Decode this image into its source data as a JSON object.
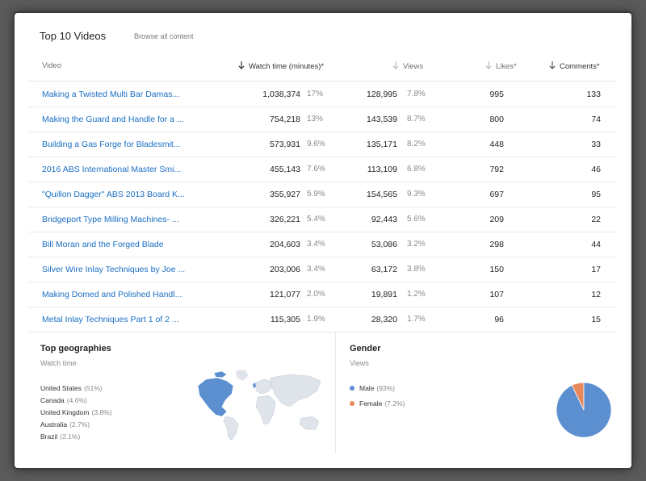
{
  "header": {
    "title": "Top 10 Videos",
    "browse_label": "Browse all content"
  },
  "columns": {
    "video": "Video",
    "watch_time": "Watch time (minutes)*",
    "views": "Views",
    "likes": "Likes*",
    "comments": "Comments*"
  },
  "rows": [
    {
      "title": "Making a Twisted Multi Bar Damas...",
      "watch": "1,038,374",
      "watch_pct": "17%",
      "views": "128,995",
      "views_pct": "7.8%",
      "likes": "995",
      "comments": "133"
    },
    {
      "title": "Making the Guard and Handle for a ...",
      "watch": "754,218",
      "watch_pct": "13%",
      "views": "143,539",
      "views_pct": "8.7%",
      "likes": "800",
      "comments": "74"
    },
    {
      "title": "Building a Gas Forge for Bladesmit...",
      "watch": "573,931",
      "watch_pct": "9.6%",
      "views": "135,171",
      "views_pct": "8.2%",
      "likes": "448",
      "comments": "33"
    },
    {
      "title": "2016 ABS International Master Smi...",
      "watch": "455,143",
      "watch_pct": "7.6%",
      "views": "113,109",
      "views_pct": "6.8%",
      "likes": "792",
      "comments": "46"
    },
    {
      "title": "\"Quillon Dagger\" ABS 2013 Board K...",
      "watch": "355,927",
      "watch_pct": "5.9%",
      "views": "154,565",
      "views_pct": "9.3%",
      "likes": "697",
      "comments": "95"
    },
    {
      "title": "Bridgeport Type Milling Machines- ...",
      "watch": "326,221",
      "watch_pct": "5.4%",
      "views": "92,443",
      "views_pct": "5.6%",
      "likes": "209",
      "comments": "22"
    },
    {
      "title": "Bill Moran and the Forged Blade",
      "watch": "204,603",
      "watch_pct": "3.4%",
      "views": "53,086",
      "views_pct": "3.2%",
      "likes": "298",
      "comments": "44"
    },
    {
      "title": "Silver Wire Inlay Techniques by Joe ...",
      "watch": "203,006",
      "watch_pct": "3.4%",
      "views": "63,172",
      "views_pct": "3.8%",
      "likes": "150",
      "comments": "17"
    },
    {
      "title": "Making Domed and Polished Handl...",
      "watch": "121,077",
      "watch_pct": "2.0%",
      "views": "19,891",
      "views_pct": "1.2%",
      "likes": "107",
      "comments": "12"
    },
    {
      "title": "Metal Inlay Techniques Part 1 of 2 ...",
      "watch": "115,305",
      "watch_pct": "1.9%",
      "views": "28,320",
      "views_pct": "1.7%",
      "likes": "96",
      "comments": "15"
    }
  ],
  "geographies": {
    "title": "Top geographies",
    "subtitle": "Watch time",
    "items": [
      {
        "name": "United States",
        "pct": "(51%)"
      },
      {
        "name": "Canada",
        "pct": "(4.6%)"
      },
      {
        "name": "United Kingdom",
        "pct": "(3.8%)"
      },
      {
        "name": "Australia",
        "pct": "(2.7%)"
      },
      {
        "name": "Brazil",
        "pct": "(2.1%)"
      }
    ]
  },
  "gender": {
    "title": "Gender",
    "subtitle": "Views",
    "items": [
      {
        "name": "Male",
        "pct": "(93%)",
        "value": 93,
        "color": "#5b8fd0"
      },
      {
        "name": "Female",
        "pct": "(7.2%)",
        "value": 7.2,
        "color": "#e8875a"
      }
    ]
  },
  "colors": {
    "link": "#1a6fc4",
    "map_land": "#dfe3ea",
    "map_highlight": "#5b8fd0"
  }
}
